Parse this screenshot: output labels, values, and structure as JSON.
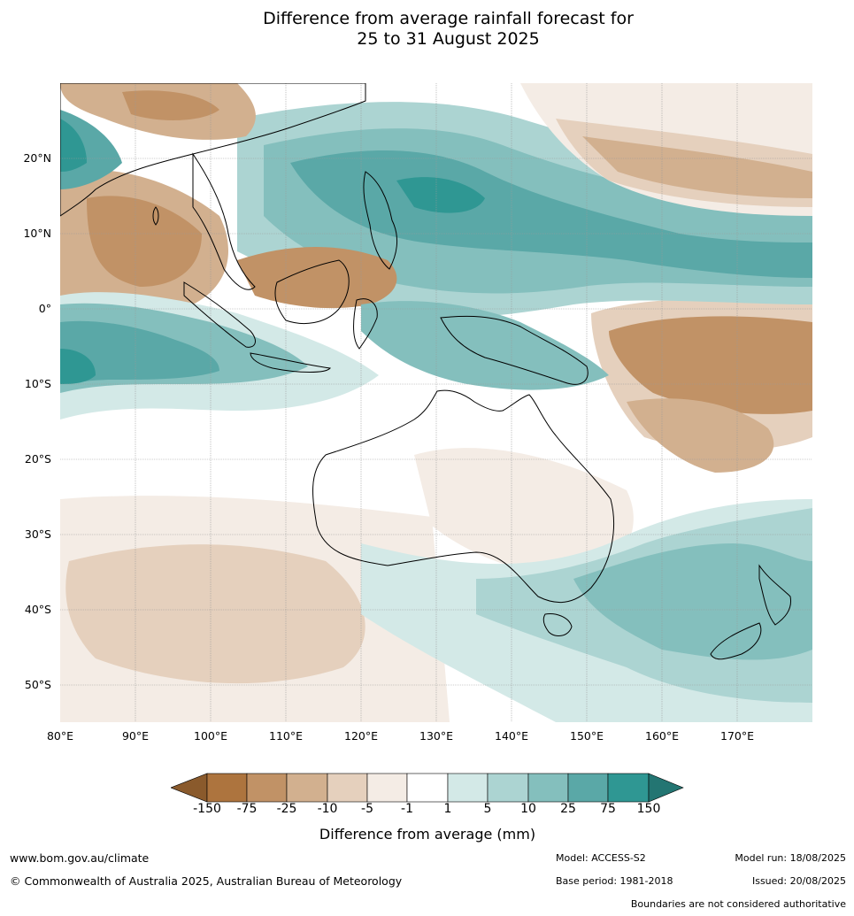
{
  "title_line1": "Difference from average rainfall forecast for",
  "title_line2": "25 to 31 August 2025",
  "map": {
    "lat_labels": [
      "20°N",
      "10°N",
      "0°",
      "10°S",
      "20°S",
      "30°S",
      "40°S",
      "50°S"
    ],
    "lon_labels": [
      "80°E",
      "90°E",
      "100°E",
      "110°E",
      "120°E",
      "130°E",
      "140°E",
      "150°E",
      "160°E",
      "170°E"
    ]
  },
  "colorbar": {
    "ticks": [
      "-150",
      "-75",
      "-25",
      "-10",
      "-5",
      "-1",
      "1",
      "5",
      "10",
      "25",
      "75",
      "150"
    ],
    "label": "Difference from average (mm)",
    "colors": {
      "lt_-150": "#8a5a2c",
      "-150_-75": "#ad743e",
      "-75_-25": "#c19266",
      "-25_-10": "#d2b08f",
      "-10_-5": "#e5d0bd",
      "-5_-1": "#f4ece5",
      "-1_1": "#ffffff",
      "1_5": "#d3e9e7",
      "5_10": "#acd4d2",
      "10_25": "#84bfbd",
      "25_75": "#5aa8a7",
      "75_150": "#2f9793",
      "gt_150": "#237572"
    }
  },
  "footer": {
    "website": "www.bom.gov.au/climate",
    "copyright": "© Commonwealth of Australia 2025, Australian Bureau of Meteorology",
    "model": "Model: ACCESS-S2",
    "base_period": "Base period: 1981-2018",
    "model_run": "Model run: 18/08/2025",
    "issued": "Issued: 20/08/2025",
    "disclaimer": "Boundaries are not considered authoritative"
  }
}
